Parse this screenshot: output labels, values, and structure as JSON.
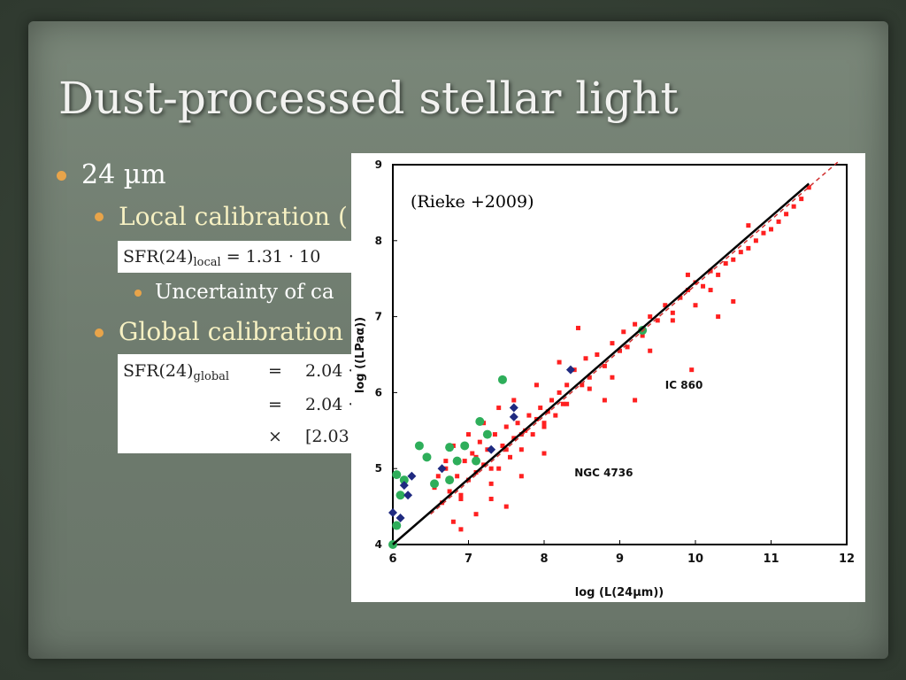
{
  "slide": {
    "title": "Dust-processed stellar light",
    "bullets": {
      "level1": "24 µm",
      "local": "Local calibration (",
      "uncertainty": "Uncertainty of ca",
      "global": "Global calibration"
    },
    "equations": {
      "local": {
        "lhs": "SFR(24)",
        "lhs_sub": "local",
        "rhs": "= 1.31 · 10"
      },
      "global": {
        "lhs": "SFR(24)",
        "lhs_sub": "global",
        "rows": [
          {
            "op": "=",
            "expr": "2.04 ·"
          },
          {
            "op": "=",
            "expr": "2.04 ·"
          },
          {
            "op": "×",
            "expr": "[2.03"
          }
        ]
      }
    },
    "colors": {
      "background": "#3e4a3d",
      "paper": "#737f72",
      "bullet_dot": "#e8a44a",
      "level2_text": "#f6f0c2",
      "red_points": "#ff2020",
      "green_points": "#2eae5a",
      "blue_points": "#1f2a80"
    }
  },
  "chart_data": {
    "type": "scatter",
    "xlabel": "log (L(24µm))",
    "ylabel": "log ((LPaα))",
    "xlim": [
      6,
      12
    ],
    "ylim": [
      4,
      9
    ],
    "x_ticks": [
      "6",
      "7",
      "8",
      "9",
      "10",
      "11",
      "12"
    ],
    "y_ticks": [
      "4",
      "5",
      "6",
      "7",
      "8",
      "9"
    ],
    "source_label": "(Rieke +2009)",
    "annotations": [
      {
        "text": "IC 860",
        "x": 9.6,
        "y": 6.05
      },
      {
        "text": "NGC 4736",
        "x": 8.4,
        "y": 4.9
      }
    ],
    "fit_line": {
      "x": [
        6.0,
        11.5
      ],
      "y": [
        4.0,
        8.75
      ]
    },
    "dashed_line": {
      "x": [
        6.5,
        11.9
      ],
      "y": [
        4.4,
        9.05
      ]
    },
    "series": [
      {
        "marker": "square",
        "color": "#ff2020",
        "points": [
          [
            6.55,
            4.75
          ],
          [
            6.6,
            4.9
          ],
          [
            6.65,
            4.55
          ],
          [
            6.7,
            5.0
          ],
          [
            6.75,
            4.7
          ],
          [
            6.8,
            4.3
          ],
          [
            6.85,
            4.9
          ],
          [
            6.9,
            4.65
          ],
          [
            6.95,
            5.1
          ],
          [
            7.0,
            4.85
          ],
          [
            7.05,
            5.2
          ],
          [
            7.1,
            4.95
          ],
          [
            7.15,
            5.35
          ],
          [
            7.2,
            5.05
          ],
          [
            7.25,
            5.25
          ],
          [
            7.3,
            4.8
          ],
          [
            7.35,
            5.45
          ],
          [
            7.4,
            5.0
          ],
          [
            7.45,
            5.3
          ],
          [
            7.5,
            5.55
          ],
          [
            7.55,
            5.15
          ],
          [
            7.6,
            5.4
          ],
          [
            7.65,
            5.6
          ],
          [
            7.7,
            5.25
          ],
          [
            7.75,
            5.5
          ],
          [
            7.8,
            5.7
          ],
          [
            7.85,
            5.45
          ],
          [
            7.9,
            5.65
          ],
          [
            7.95,
            5.8
          ],
          [
            8.0,
            5.55
          ],
          [
            8.05,
            5.75
          ],
          [
            8.1,
            5.9
          ],
          [
            8.15,
            5.7
          ],
          [
            8.2,
            6.0
          ],
          [
            8.25,
            5.85
          ],
          [
            8.3,
            6.1
          ],
          [
            8.4,
            6.3
          ],
          [
            8.5,
            6.1
          ],
          [
            8.55,
            6.45
          ],
          [
            8.6,
            6.2
          ],
          [
            8.7,
            6.5
          ],
          [
            8.8,
            6.35
          ],
          [
            8.9,
            6.65
          ],
          [
            9.0,
            6.55
          ],
          [
            9.05,
            6.8
          ],
          [
            9.1,
            6.6
          ],
          [
            9.2,
            6.9
          ],
          [
            9.3,
            6.75
          ],
          [
            9.4,
            7.0
          ],
          [
            9.5,
            6.95
          ],
          [
            9.6,
            7.15
          ],
          [
            9.7,
            7.05
          ],
          [
            9.8,
            7.25
          ],
          [
            9.9,
            7.35
          ],
          [
            10.0,
            7.45
          ],
          [
            10.1,
            7.4
          ],
          [
            10.2,
            7.6
          ],
          [
            10.3,
            7.55
          ],
          [
            10.4,
            7.7
          ],
          [
            10.5,
            7.75
          ],
          [
            10.6,
            7.85
          ],
          [
            10.7,
            7.9
          ],
          [
            10.8,
            8.0
          ],
          [
            10.9,
            8.1
          ],
          [
            11.0,
            8.15
          ],
          [
            11.1,
            8.25
          ],
          [
            11.2,
            8.35
          ],
          [
            11.3,
            8.45
          ],
          [
            11.4,
            8.55
          ],
          [
            11.5,
            8.7
          ],
          [
            6.9,
            4.2
          ],
          [
            7.1,
            4.4
          ],
          [
            7.3,
            4.6
          ],
          [
            7.5,
            4.5
          ],
          [
            7.7,
            4.9
          ],
          [
            6.8,
            5.3
          ],
          [
            7.0,
            5.45
          ],
          [
            7.2,
            5.6
          ],
          [
            7.4,
            5.8
          ],
          [
            7.6,
            5.9
          ],
          [
            8.0,
            5.2
          ],
          [
            8.45,
            6.85
          ],
          [
            8.8,
            5.9
          ],
          [
            9.2,
            5.9
          ],
          [
            9.95,
            6.3
          ],
          [
            9.9,
            7.55
          ],
          [
            10.3,
            7.0
          ],
          [
            10.7,
            8.2
          ],
          [
            10.5,
            7.2
          ],
          [
            7.9,
            6.1
          ],
          [
            8.2,
            6.4
          ],
          [
            6.7,
            5.1
          ],
          [
            6.9,
            4.6
          ],
          [
            7.1,
            5.15
          ],
          [
            7.3,
            5.0
          ],
          [
            7.5,
            5.25
          ],
          [
            7.7,
            5.45
          ],
          [
            8.0,
            5.6
          ],
          [
            8.3,
            5.85
          ],
          [
            8.6,
            6.05
          ],
          [
            8.9,
            6.2
          ],
          [
            9.4,
            6.55
          ],
          [
            9.7,
            6.95
          ],
          [
            10.0,
            7.15
          ],
          [
            10.2,
            7.35
          ]
        ]
      },
      {
        "marker": "circle",
        "color": "#2eae5a",
        "points": [
          [
            6.0,
            4.0
          ],
          [
            6.05,
            4.25
          ],
          [
            6.1,
            4.65
          ],
          [
            6.05,
            4.92
          ],
          [
            6.15,
            4.85
          ],
          [
            6.35,
            5.3
          ],
          [
            6.45,
            5.15
          ],
          [
            6.55,
            4.8
          ],
          [
            6.75,
            4.85
          ],
          [
            6.75,
            5.28
          ],
          [
            6.85,
            5.1
          ],
          [
            6.95,
            5.3
          ],
          [
            7.1,
            5.1
          ],
          [
            7.15,
            5.62
          ],
          [
            7.25,
            5.45
          ],
          [
            7.45,
            6.17
          ],
          [
            9.3,
            6.82
          ]
        ]
      },
      {
        "marker": "diamond",
        "color": "#1f2a80",
        "points": [
          [
            6.0,
            4.42
          ],
          [
            6.1,
            4.35
          ],
          [
            6.15,
            4.78
          ],
          [
            6.2,
            4.65
          ],
          [
            6.25,
            4.9
          ],
          [
            6.65,
            5.0
          ],
          [
            7.3,
            5.25
          ],
          [
            7.6,
            5.8
          ],
          [
            7.6,
            5.68
          ],
          [
            8.35,
            6.3
          ]
        ]
      }
    ]
  }
}
